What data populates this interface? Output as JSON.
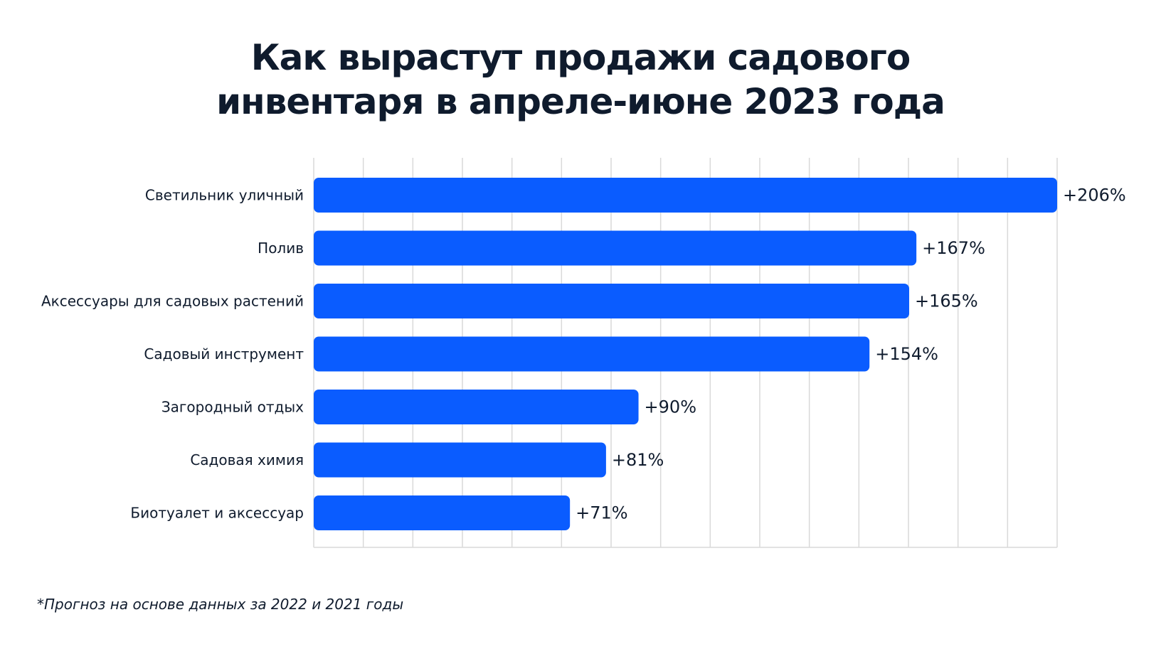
{
  "title": {
    "line1": "Как вырастут продажи садового",
    "line2": "инвентаря в апреле-июне 2023 года"
  },
  "footnote": "*Прогноз на основе данных за 2022 и 2021 годы",
  "colors": {
    "bar": "#0a5cff",
    "grid": "#d9d9d9",
    "text": "#0f1b2d"
  },
  "chart_data": {
    "type": "bar",
    "orientation": "horizontal",
    "title": "Как вырастут продажи садового инвентаря в апреле-июне 2023 года",
    "xlabel": "",
    "ylabel": "",
    "xlim": [
      0,
      206
    ],
    "grid": true,
    "categories": [
      "Светильник уличный",
      "Полив",
      "Аксессуары для садовых растений",
      "Садовый инструмент",
      "Загородный отдых",
      "Садовая химия",
      "Биотуалет и аксессуар"
    ],
    "values": [
      206,
      167,
      165,
      154,
      90,
      81,
      71
    ],
    "value_labels": [
      "+206%",
      "+167%",
      "+165%",
      "+154%",
      "+90%",
      "+81%",
      "+71%"
    ]
  }
}
